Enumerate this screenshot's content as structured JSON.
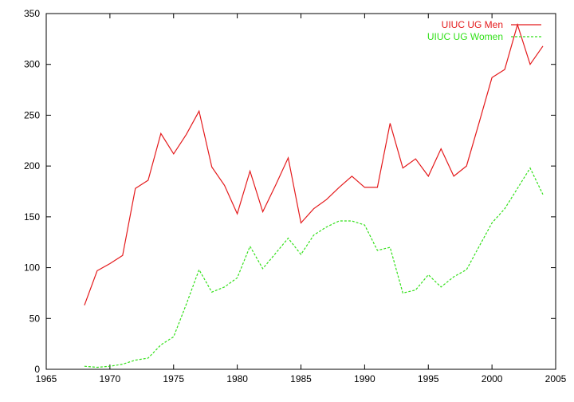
{
  "chart_data": {
    "type": "line",
    "title": "",
    "xlabel": "",
    "ylabel": "",
    "xlim": [
      1965,
      2005
    ],
    "ylim": [
      0,
      350
    ],
    "xticks": [
      1965,
      1970,
      1975,
      1980,
      1985,
      1990,
      1995,
      2000,
      2005
    ],
    "yticks": [
      0,
      50,
      100,
      150,
      200,
      250,
      300,
      350
    ],
    "grid": false,
    "legend_position": "top-right",
    "x": [
      1968,
      1969,
      1970,
      1971,
      1972,
      1973,
      1974,
      1975,
      1976,
      1977,
      1978,
      1979,
      1980,
      1981,
      1982,
      1983,
      1984,
      1985,
      1986,
      1987,
      1988,
      1989,
      1990,
      1991,
      1992,
      1993,
      1994,
      1995,
      1996,
      1997,
      1998,
      1999,
      2000,
      2001,
      2002,
      2003,
      2004
    ],
    "series": [
      {
        "name": "UIUC UG Men",
        "color": "#e41a1c",
        "dash": "solid",
        "values": [
          63,
          97,
          104,
          112,
          178,
          186,
          232,
          212,
          231,
          254,
          199,
          181,
          153,
          195,
          155,
          181,
          208,
          144,
          158,
          167,
          179,
          190,
          179,
          179,
          242,
          198,
          207,
          190,
          217,
          190,
          200,
          243,
          287,
          295,
          339,
          300,
          318
        ]
      },
      {
        "name": "UIUC UG Women",
        "color": "#33e01a",
        "dash": "dashed",
        "values": [
          3,
          2,
          3,
          5,
          9,
          11,
          24,
          32,
          64,
          98,
          76,
          81,
          90,
          121,
          99,
          114,
          129,
          113,
          132,
          140,
          146,
          146,
          142,
          117,
          120,
          75,
          78,
          93,
          81,
          91,
          98,
          121,
          144,
          158,
          178,
          198,
          172
        ]
      }
    ]
  }
}
